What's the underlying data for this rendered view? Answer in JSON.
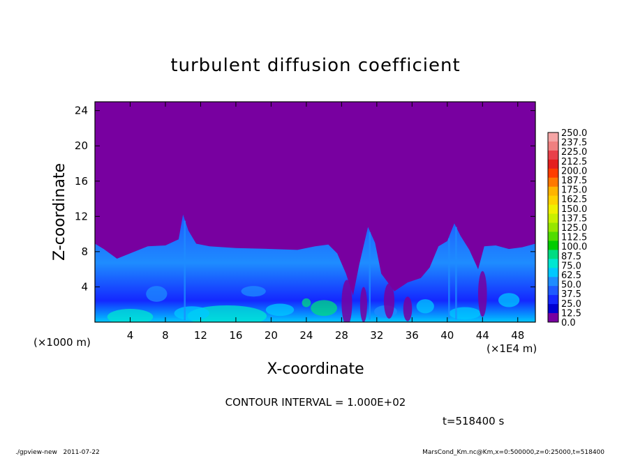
{
  "chart_data": {
    "type": "heatmap",
    "title": "turbulent diffusion coefficient",
    "xlabel": "X-coordinate",
    "ylabel": "Z-coordinate",
    "x_unit": "(×1E4 m)",
    "y_unit": "(×1000 m)",
    "xlim": [
      0,
      50
    ],
    "ylim": [
      0,
      25
    ],
    "x_ticks": [
      4,
      8,
      12,
      16,
      20,
      24,
      28,
      32,
      36,
      40,
      44,
      48
    ],
    "y_ticks": [
      4,
      8,
      12,
      16,
      20,
      24
    ],
    "colorbar": {
      "levels": [
        "250.0",
        "237.5",
        "225.0",
        "212.5",
        "200.0",
        "187.5",
        "175.0",
        "162.5",
        "150.0",
        "137.5",
        "125.0",
        "112.5",
        "100.0",
        "87.5",
        "75.0",
        "62.5",
        "50.0",
        "37.5",
        "25.0",
        "12.5",
        "0.0"
      ],
      "colors": [
        "#f5a5a5",
        "#f08080",
        "#e8404a",
        "#e41e1e",
        "#ff3c00",
        "#ff7800",
        "#ffb400",
        "#ffd200",
        "#f0f000",
        "#c8f000",
        "#96e600",
        "#50dc00",
        "#00cc00",
        "#00dc82",
        "#00e6d2",
        "#00c8ff",
        "#1e8cff",
        "#1e5aff",
        "#1428ff",
        "#0000d2",
        "#7800a0"
      ]
    },
    "contour_interval_text": "CONTOUR INTERVAL = 1.000E+02",
    "time_text": "t=518400 s",
    "max_value_approx": 120,
    "background_level": 0.0,
    "turbulent_layer_top_approx": 8.5
  },
  "footer": {
    "left": "./gpview-new   2011-07-22",
    "right": "MarsCond_Km.nc@Km,x=0:500000,z=0:25000,t=518400"
  }
}
